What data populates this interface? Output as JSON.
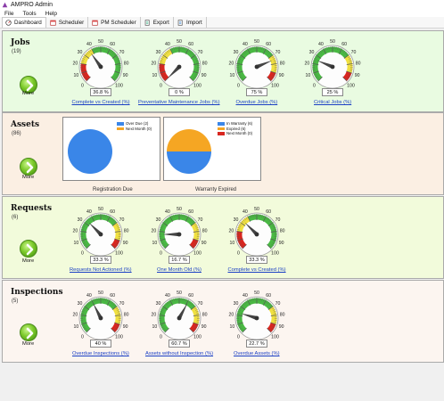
{
  "window": {
    "title": "AMPRO Admin"
  },
  "menu": [
    "File",
    "Tools",
    "Help"
  ],
  "tabs": [
    {
      "label": "Dashboard",
      "icon": "dashboard-icon",
      "active": true
    },
    {
      "label": "Scheduler",
      "icon": "calendar-icon",
      "active": false
    },
    {
      "label": "PM Scheduler",
      "icon": "calendar-icon",
      "active": false
    },
    {
      "label": "Export",
      "icon": "export-icon",
      "active": false
    },
    {
      "label": "Import",
      "icon": "import-icon",
      "active": false
    }
  ],
  "more_label": "More",
  "gauge_scale": {
    "ticks": [
      "0",
      "10",
      "20",
      "30",
      "40",
      "50",
      "60",
      "70",
      "80",
      "90",
      "100"
    ]
  },
  "colors": {
    "green_zone": "#49b843",
    "yellow_zone": "#f0e040",
    "red_zone": "#d8261f",
    "link": "#1a3fc4"
  },
  "sections": {
    "jobs": {
      "title": "Jobs",
      "count": "(19)",
      "gauges": [
        {
          "value_text": "36.8 %",
          "value": 36.8,
          "link": "Complete vs Created (%)",
          "scheme": "red-yellow-green"
        },
        {
          "value_text": "0 %",
          "value": 0,
          "link": "Preventative Maintenance Jobs (%)",
          "scheme": "red-yellow-green"
        },
        {
          "value_text": "75 %",
          "value": 75,
          "link": "Overdue Jobs (%)",
          "scheme": "green-yellow-red"
        },
        {
          "value_text": "25 %",
          "value": 25,
          "link": "Critical Jobs (%)",
          "scheme": "green-yellow-red"
        }
      ]
    },
    "assets": {
      "title": "Assets",
      "count": "(86)",
      "charts": [
        {
          "caption": "Registration Due",
          "legend": [
            {
              "label": "Over Due (2)",
              "color": "#3a86e8"
            },
            {
              "label": "Next Month (0)",
              "color": "#f5a623"
            }
          ]
        },
        {
          "caption": "Warranty Expired",
          "legend": [
            {
              "label": "In Warranty (6)",
              "color": "#3a86e8"
            },
            {
              "label": "Expired (6)",
              "color": "#f5a623"
            },
            {
              "label": "Next Month (0)",
              "color": "#d8261f"
            }
          ]
        }
      ]
    },
    "requests": {
      "title": "Requests",
      "count": "(6)",
      "gauges": [
        {
          "value_text": "33.3 %",
          "value": 33.3,
          "link": "Requests Not Actioned (%)",
          "scheme": "green-yellow-red"
        },
        {
          "value_text": "16.7 %",
          "value": 16.7,
          "link": "One Month Old (%)",
          "scheme": "green-yellow-red"
        },
        {
          "value_text": "33.3 %",
          "value": 33.3,
          "link": "Complete vs Created (%)",
          "scheme": "red-yellow-green"
        }
      ]
    },
    "inspections": {
      "title": "Inspections",
      "count": "(5)",
      "gauges": [
        {
          "value_text": "40 %",
          "value": 40,
          "link": "Overdue Inspections (%)",
          "scheme": "green-yellow-red"
        },
        {
          "value_text": "60.7 %",
          "value": 60.7,
          "link": "Assets without Inspection (%)",
          "scheme": "green-yellow-red"
        },
        {
          "value_text": "22.7 %",
          "value": 22.7,
          "link": "Overdue Assets (%)",
          "scheme": "green-yellow-red"
        }
      ]
    }
  },
  "chart_data": [
    {
      "type": "pie",
      "title": "Registration Due",
      "categories": [
        "Over Due",
        "Next Month"
      ],
      "values": [
        2,
        0
      ]
    },
    {
      "type": "pie",
      "title": "Warranty Expired",
      "categories": [
        "In Warranty",
        "Expired",
        "Next Month"
      ],
      "values": [
        6,
        6,
        0
      ]
    }
  ]
}
